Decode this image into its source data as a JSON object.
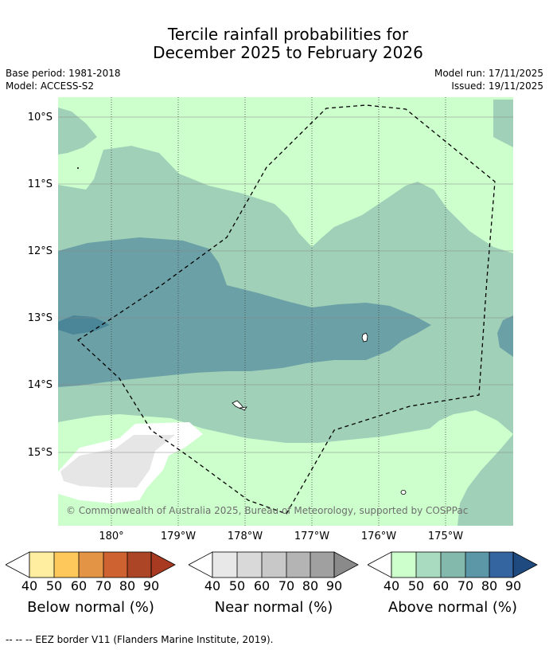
{
  "title": {
    "line1": "Tercile rainfall probabilities for",
    "line2": "December 2025 to February 2026"
  },
  "meta": {
    "base_period": "Base period: 1981-2018",
    "model": "Model: ACCESS-S2",
    "model_run": "Model run: 17/11/2025",
    "issued": "Issued: 19/11/2025"
  },
  "map": {
    "lat_labels": [
      "10°S",
      "11°S",
      "12°S",
      "13°S",
      "14°S",
      "15°S"
    ],
    "lon_labels": [
      "180°",
      "179°W",
      "178°W",
      "177°W",
      "176°W",
      "175°W"
    ],
    "credit": "© Commonwealth of Australia 2025, Bureau of Meteorology, supported by COSPPac",
    "colors": {
      "above_40_50": "#ccffcc",
      "above_50_60": "#a0d0b8",
      "above_60_70": "#6ba1a6",
      "above_70_80": "#4a8598",
      "near_40_50": "#e6e6e6",
      "land": "#ffffff"
    }
  },
  "legends": [
    {
      "title": "Below normal (%)",
      "ticks": [
        "40",
        "50",
        "60",
        "70",
        "80",
        "90"
      ],
      "colors": [
        "#ffeda0",
        "#fec85a",
        "#e39445",
        "#cf6231",
        "#ac4526"
      ],
      "extend_color": "#a83a22"
    },
    {
      "title": "Near normal (%)",
      "ticks": [
        "40",
        "50",
        "60",
        "70",
        "80",
        "90"
      ],
      "colors": [
        "#e8e8e8",
        "#d9d9d9",
        "#c8c8c8",
        "#b4b4b4",
        "#a0a0a0"
      ],
      "extend_color": "#8a8a8a"
    },
    {
      "title": "Above normal (%)",
      "ticks": [
        "40",
        "50",
        "60",
        "70",
        "80",
        "90"
      ],
      "colors": [
        "#ccffcc",
        "#a8dbbf",
        "#83b8ac",
        "#5b97a6",
        "#3565a0"
      ],
      "extend_color": "#1f4a80"
    }
  ],
  "footnote": "--  --  -- EEZ border V11 (Flanders Marine Institute, 2019)."
}
